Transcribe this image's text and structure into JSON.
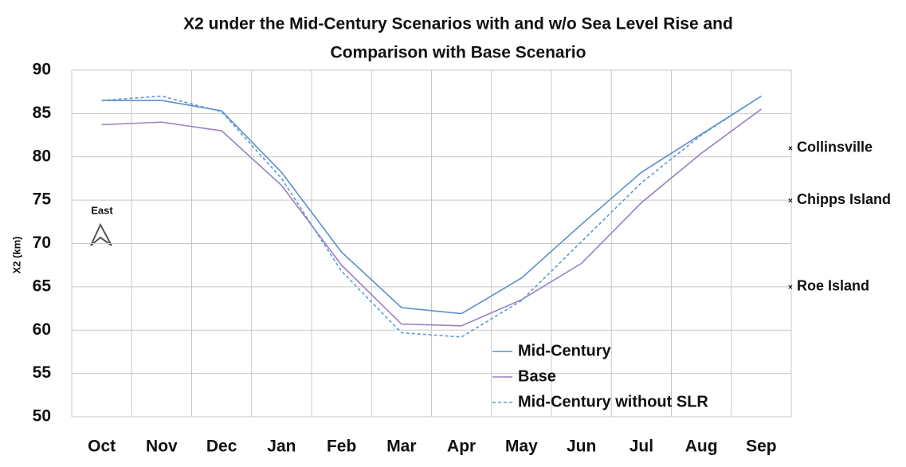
{
  "chart_data": {
    "type": "line",
    "title": [
      "X2  under the Mid-Century Scenarios with and w/o Sea Level Rise and",
      "Comparison with Base Scenario"
    ],
    "y_label": "X2 (km)",
    "categories": [
      "Oct",
      "Nov",
      "Dec",
      "Jan",
      "Feb",
      "Mar",
      "Apr",
      "May",
      "Jun",
      "Jul",
      "Aug",
      "Sep"
    ],
    "series": [
      {
        "name": "Mid-Century",
        "color": "#5b8fc9",
        "dash": false,
        "values": [
          86.5,
          86.5,
          85.3,
          78.2,
          69,
          62.6,
          61.9,
          66,
          72.2,
          78.2,
          82.6,
          87
        ]
      },
      {
        "name": "Base",
        "color": "#9a80bf",
        "dash": false,
        "values": [
          83.7,
          84,
          83,
          76.7,
          67.5,
          60.7,
          60.5,
          63.5,
          67.7,
          74.7,
          80.4,
          85.5
        ]
      },
      {
        "name": "Mid-Century without SLR",
        "color": "#5b9bd5",
        "dash": true,
        "values": [
          86.5,
          87,
          85.2,
          77.5,
          66.8,
          59.7,
          59.2,
          63.4,
          70.2,
          77,
          82.5,
          87
        ]
      }
    ],
    "ylim": [
      50,
      90
    ],
    "yticks": [
      50,
      55,
      60,
      65,
      70,
      75,
      80,
      85,
      90
    ],
    "grid": true,
    "legend": "lower center",
    "annotations": [
      {
        "text": "Collinsville",
        "y": 81
      },
      {
        "text": "Chipps Island",
        "y": 75
      },
      {
        "text": "Roe Island",
        "y": 65
      }
    ],
    "compass_label": "East"
  }
}
